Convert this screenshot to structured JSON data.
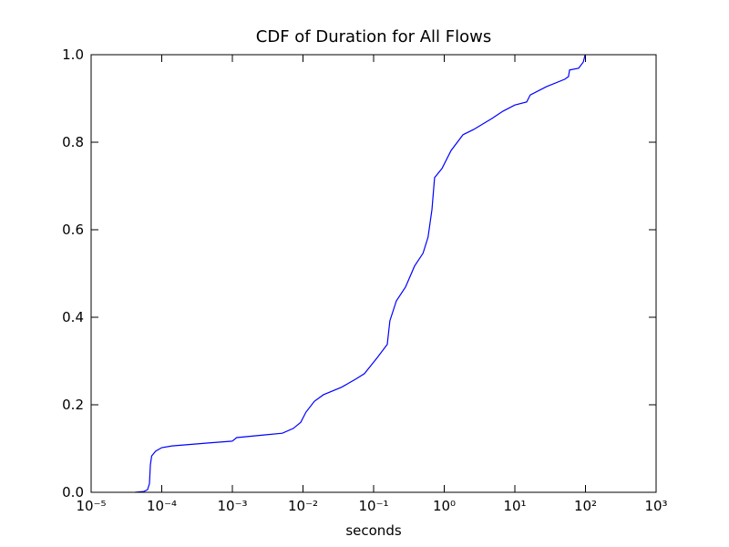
{
  "chart_data": {
    "type": "line",
    "title": "CDF of Duration for All Flows",
    "x_label": "seconds",
    "x_scale": "log",
    "xlim": [
      1e-05,
      1000
    ],
    "xticks": [
      {
        "value": 1e-05,
        "label": "10⁻⁵"
      },
      {
        "value": 0.0001,
        "label": "10⁻⁴"
      },
      {
        "value": 0.001,
        "label": "10⁻³"
      },
      {
        "value": 0.01,
        "label": "10⁻²"
      },
      {
        "value": 0.1,
        "label": "10⁻¹"
      },
      {
        "value": 1,
        "label": "10⁰"
      },
      {
        "value": 10,
        "label": "10¹"
      },
      {
        "value": 100,
        "label": "10²"
      },
      {
        "value": 1000,
        "label": "10³"
      }
    ],
    "ylim": [
      0,
      1
    ],
    "yticks": [
      {
        "value": 0,
        "label": "0.0"
      },
      0.2,
      0.4,
      0.6,
      0.8,
      {
        "value": 1,
        "label": "1.0"
      }
    ],
    "x": [
      4.2e-05,
      5.6e-05,
      6.3e-05,
      6.7e-05,
      6.9e-05,
      7.2e-05,
      8.2e-05,
      0.0001,
      0.00014,
      0.00048,
      0.001,
      0.00115,
      0.0028,
      0.0051,
      0.0073,
      0.0093,
      0.011,
      0.0145,
      0.0195,
      0.035,
      0.055,
      0.074,
      0.094,
      0.113,
      0.156,
      0.17,
      0.21,
      0.283,
      0.38,
      0.5,
      0.59,
      0.67,
      0.73,
      0.93,
      1.25,
      1.84,
      2.6,
      4.7,
      6.8,
      10,
      14.7,
      16.5,
      28,
      51,
      57.5,
      59.5,
      80,
      93,
      99
    ],
    "series": [
      {
        "name": "CDF",
        "color": "#0000ff",
        "values": [
          0,
          0.002,
          0.006,
          0.02,
          0.0625,
          0.083,
          0.094,
          0.102,
          0.106,
          0.113,
          0.117,
          0.125,
          0.131,
          0.135,
          0.146,
          0.16,
          0.183,
          0.208,
          0.223,
          0.24,
          0.258,
          0.271,
          0.292,
          0.308,
          0.338,
          0.392,
          0.4375,
          0.469,
          0.517,
          0.546,
          0.583,
          0.646,
          0.719,
          0.74,
          0.781,
          0.817,
          0.829,
          0.854,
          0.871,
          0.885,
          0.892,
          0.908,
          0.927,
          0.944,
          0.95,
          0.965,
          0.969,
          0.983,
          1.0
        ]
      }
    ],
    "grid": false
  }
}
